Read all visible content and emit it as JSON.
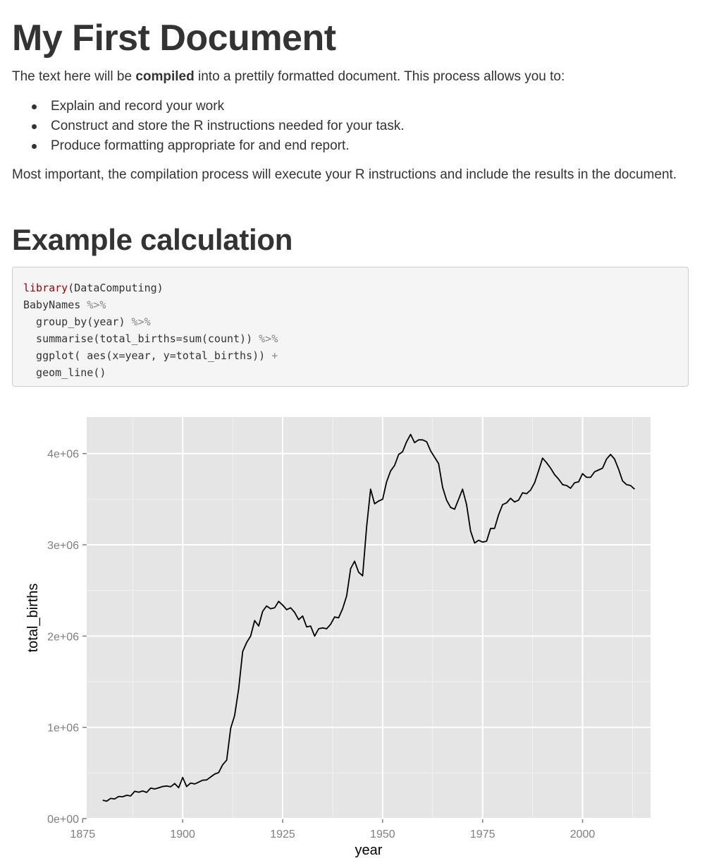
{
  "document": {
    "title": "My First Document",
    "intro": {
      "before": "The text here will be ",
      "bold": "compiled",
      "after": " into a prettily formatted document. This process allows you to:"
    },
    "bullets": [
      "Explain and record your work",
      "Construct and store the R instructions needed for your task.",
      "Produce formatting appropriate for and end report."
    ],
    "closing": "Most important, the compilation process will execute your R instructions and include the results in the document.",
    "section_heading": "Example calculation",
    "code": {
      "l1_fn": "library",
      "l1_rest": "(DataComputing)",
      "l2_obj": "BabyNames ",
      "l2_pipe": "%>%",
      "l3_text": "  group_by(year) ",
      "l3_pipe": "%>%",
      "l4_text": "  summarise(total_births=sum(count)) ",
      "l4_pipe": "%>%",
      "l5_text": "  ggplot( aes(x=year, y=total_births)) ",
      "l5_plus": "+",
      "l6_text": "  geom_line()"
    }
  },
  "chart_data": {
    "type": "line",
    "title": "",
    "xlabel": "year",
    "ylabel": "total_births",
    "xlim": [
      1876,
      2017
    ],
    "ylim": [
      0,
      4400000
    ],
    "x_ticks": [
      1875,
      1900,
      1925,
      1950,
      1975,
      2000
    ],
    "y_ticks": [
      0,
      1000000,
      2000000,
      3000000,
      4000000
    ],
    "y_tick_labels": [
      "0e+00",
      "1e+06",
      "2e+06",
      "3e+06",
      "4e+06"
    ],
    "grid": true,
    "panel_color": "#e5e5e5",
    "line_color": "#000000",
    "series": [
      {
        "x": [
          1880,
          1881,
          1882,
          1883,
          1884,
          1885,
          1886,
          1887,
          1888,
          1889,
          1890,
          1891,
          1892,
          1893,
          1894,
          1895,
          1896,
          1897,
          1898,
          1899,
          1900,
          1901,
          1902,
          1903,
          1904,
          1905,
          1906,
          1907,
          1908,
          1909,
          1910,
          1911,
          1912,
          1913,
          1914,
          1915,
          1916,
          1917,
          1918,
          1919,
          1920,
          1921,
          1922,
          1923,
          1924,
          1925,
          1926,
          1927,
          1928,
          1929,
          1930,
          1931,
          1932,
          1933,
          1934,
          1935,
          1936,
          1937,
          1938,
          1939,
          1940,
          1941,
          1942,
          1943,
          1944,
          1945,
          1946,
          1947,
          1948,
          1949,
          1950,
          1951,
          1952,
          1953,
          1954,
          1955,
          1956,
          1957,
          1958,
          1959,
          1960,
          1961,
          1962,
          1963,
          1964,
          1965,
          1966,
          1967,
          1968,
          1969,
          1970,
          1971,
          1972,
          1973,
          1974,
          1975,
          1976,
          1977,
          1978,
          1979,
          1980,
          1981,
          1982,
          1983,
          1984,
          1985,
          1986,
          1987,
          1988,
          1989,
          1990,
          1991,
          1992,
          1993,
          1994,
          1995,
          1996,
          1997,
          1998,
          1999,
          2000,
          2001,
          2002,
          2003,
          2004,
          2005,
          2006,
          2007,
          2008,
          2009,
          2010,
          2011,
          2012,
          2013
        ],
        "y": [
          201000,
          192000,
          221000,
          216000,
          243000,
          240000,
          255000,
          248000,
          299000,
          289000,
          302000,
          287000,
          334000,
          325000,
          337000,
          352000,
          357000,
          349000,
          384000,
          339000,
          451000,
          351000,
          390000,
          380000,
          400000,
          421000,
          424000,
          456000,
          488000,
          504000,
          590000,
          640000,
          990000,
          1130000,
          1420000,
          1830000,
          1930000,
          2000000,
          2170000,
          2110000,
          2270000,
          2330000,
          2300000,
          2310000,
          2380000,
          2340000,
          2290000,
          2310000,
          2260000,
          2180000,
          2220000,
          2100000,
          2110000,
          2000000,
          2080000,
          2090000,
          2080000,
          2130000,
          2210000,
          2200000,
          2300000,
          2440000,
          2740000,
          2820000,
          2700000,
          2660000,
          3200000,
          3610000,
          3450000,
          3480000,
          3500000,
          3690000,
          3810000,
          3870000,
          3990000,
          4020000,
          4130000,
          4210000,
          4120000,
          4150000,
          4150000,
          4130000,
          4030000,
          3960000,
          3890000,
          3630000,
          3490000,
          3410000,
          3390000,
          3500000,
          3610000,
          3440000,
          3150000,
          3020000,
          3050000,
          3030000,
          3040000,
          3180000,
          3180000,
          3330000,
          3440000,
          3460000,
          3510000,
          3470000,
          3490000,
          3570000,
          3560000,
          3600000,
          3680000,
          3810000,
          3950000,
          3900000,
          3840000,
          3770000,
          3720000,
          3660000,
          3650000,
          3620000,
          3680000,
          3690000,
          3780000,
          3740000,
          3740000,
          3800000,
          3820000,
          3840000,
          3940000,
          3990000,
          3940000,
          3830000,
          3700000,
          3660000,
          3650000,
          3610000
        ]
      }
    ]
  }
}
